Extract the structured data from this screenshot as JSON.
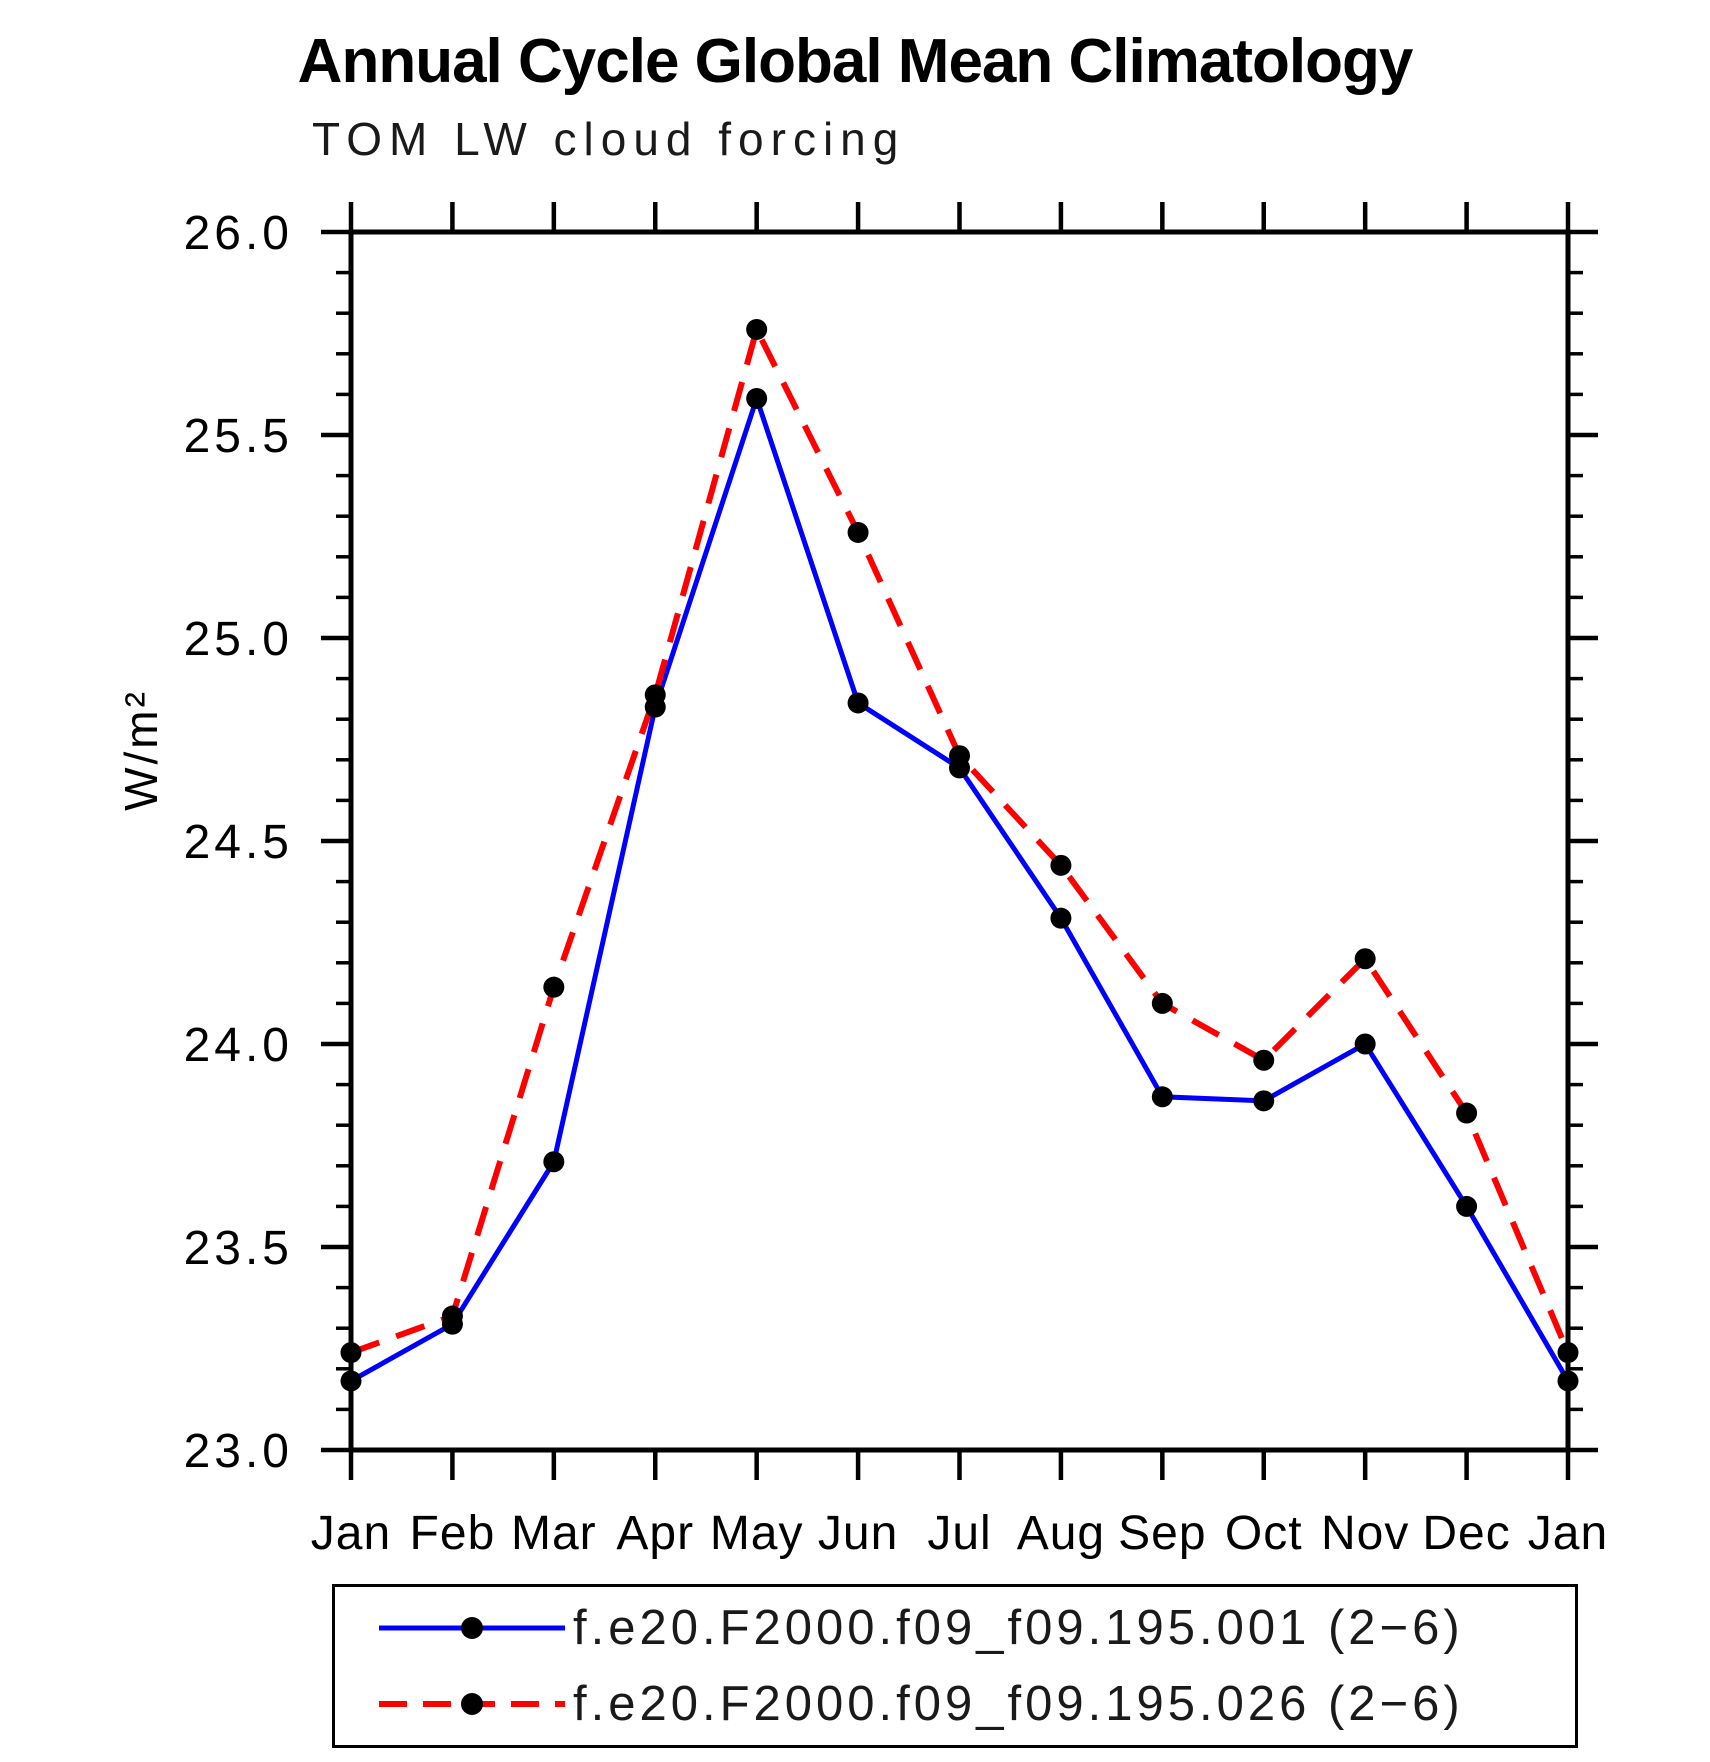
{
  "chart_data": {
    "type": "line",
    "title": "Annual Cycle Global Mean Climatology",
    "subtitle": "TOM LW cloud forcing",
    "ylabel": "W/m²",
    "xlabel": "",
    "categories": [
      "Jan",
      "Feb",
      "Mar",
      "Apr",
      "May",
      "Jun",
      "Jul",
      "Aug",
      "Sep",
      "Oct",
      "Nov",
      "Dec",
      "Jan"
    ],
    "ylim": [
      23.0,
      26.0
    ],
    "ytick_interval": 0.5,
    "yminor_interval": 0.1,
    "ytick_labels": [
      "23.0",
      "23.5",
      "24.0",
      "24.5",
      "25.0",
      "25.5",
      "26.0"
    ],
    "grid": false,
    "legend_position": "bottom",
    "axis_color": "#000000",
    "marker_color": "#000000",
    "series": [
      {
        "name": "f.e20.F2000.f09_f09.195.001 (2−6)",
        "color": "#0000ff",
        "line_style": "solid",
        "marker": "filled-circle",
        "values": [
          23.17,
          23.31,
          23.71,
          24.83,
          25.59,
          24.84,
          24.68,
          24.31,
          23.87,
          23.86,
          24.0,
          23.6,
          23.17
        ]
      },
      {
        "name": "f.e20.F2000.f09_f09.195.026 (2−6)",
        "color": "#ff0000",
        "line_style": "dashed",
        "marker": "filled-circle",
        "values": [
          23.24,
          23.33,
          24.14,
          24.86,
          25.76,
          25.26,
          24.71,
          24.44,
          24.1,
          23.96,
          24.21,
          23.83,
          23.24
        ]
      }
    ]
  }
}
